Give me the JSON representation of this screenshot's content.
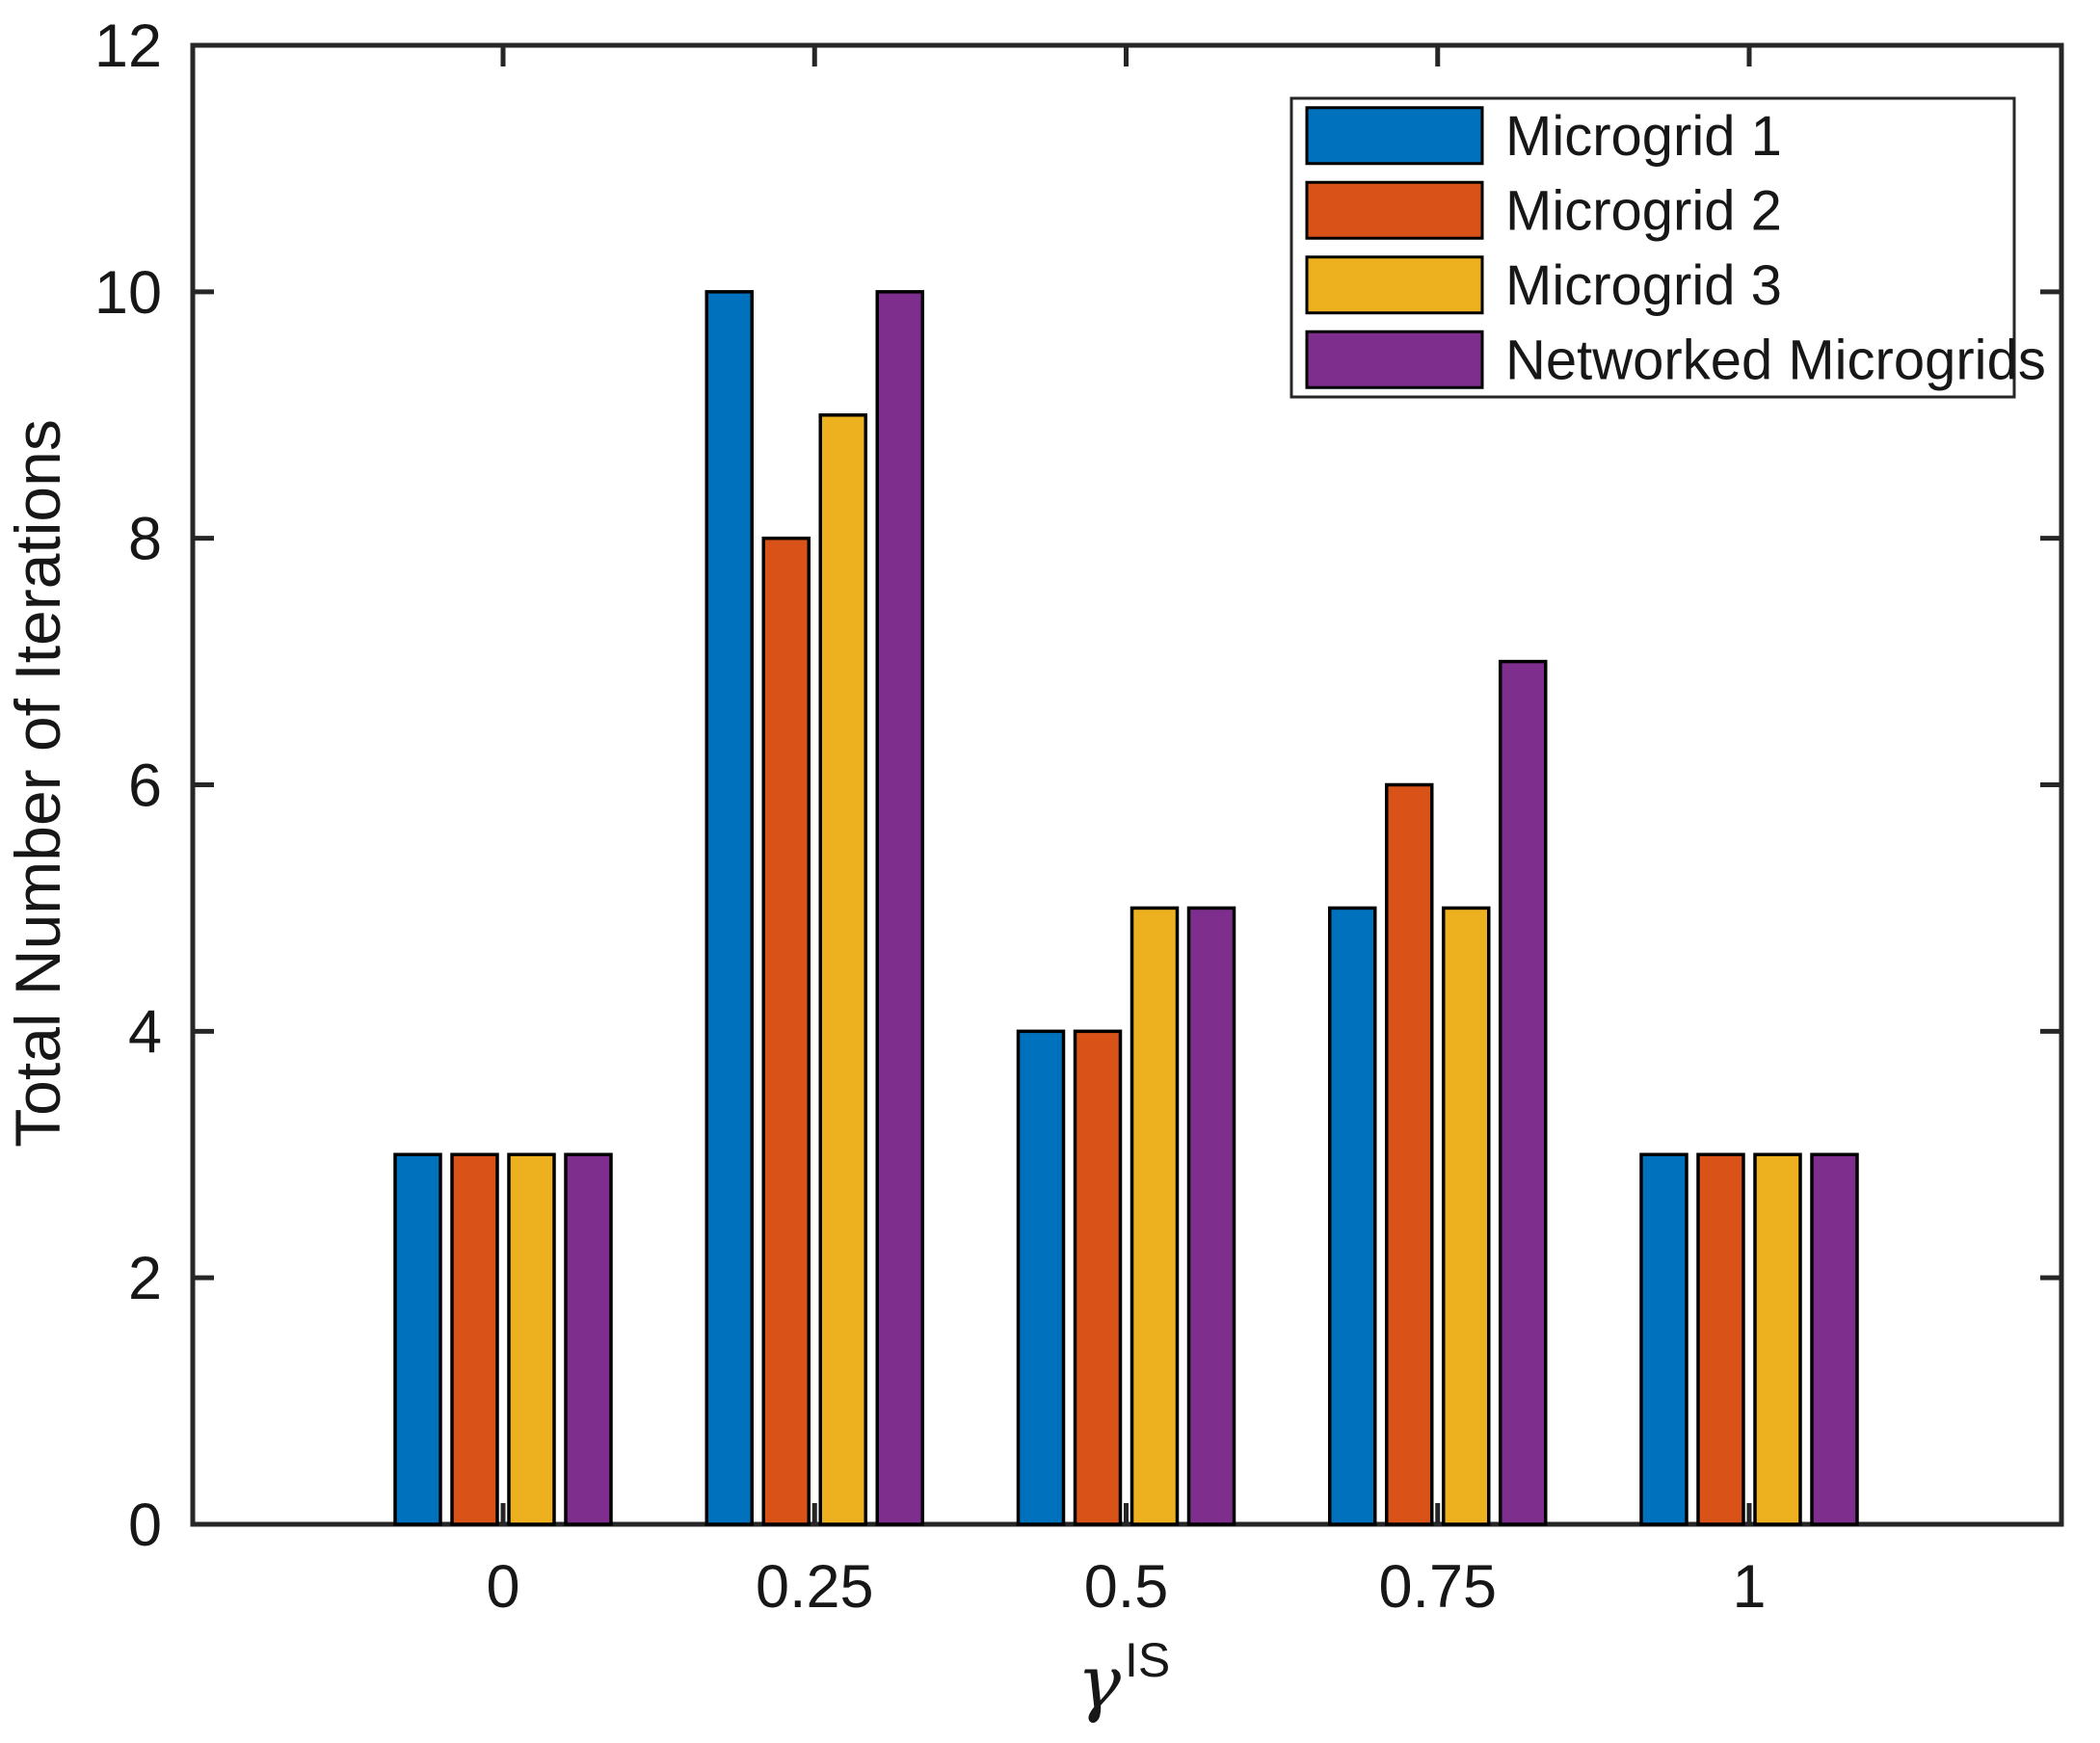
{
  "chart_data": {
    "type": "bar",
    "title": "",
    "ylabel": "Total Number of Iterations",
    "xlabel_base": "γ",
    "xlabel_superscript": "IS",
    "categories": [
      "0",
      "0.25",
      "0.5",
      "0.75",
      "1"
    ],
    "x_values": [
      0,
      0.25,
      0.5,
      0.75,
      1
    ],
    "series": [
      {
        "name": "Microgrid 1",
        "color": "#0072BD",
        "values": [
          3,
          10,
          4,
          5,
          3
        ]
      },
      {
        "name": "Microgrid 2",
        "color": "#D95319",
        "values": [
          3,
          8,
          4,
          6,
          3
        ]
      },
      {
        "name": "Microgrid 3",
        "color": "#EDB120",
        "values": [
          3,
          9,
          5,
          5,
          3
        ]
      },
      {
        "name": "Networked Microgrids",
        "color": "#7E2F8E",
        "values": [
          3,
          10,
          5,
          7,
          3
        ]
      }
    ],
    "ylim": [
      0,
      12
    ],
    "yticks": [
      0,
      2,
      4,
      6,
      8,
      10,
      12
    ],
    "ytick_labels": [
      "0",
      "2",
      "4",
      "6",
      "8",
      "10",
      "12"
    ],
    "grid": false,
    "legend_position": "top-right",
    "bar_edge_color": "#000000",
    "axis_color": "#262626",
    "legend_border_color": "#262626",
    "background_color": "#FFFFFF"
  }
}
